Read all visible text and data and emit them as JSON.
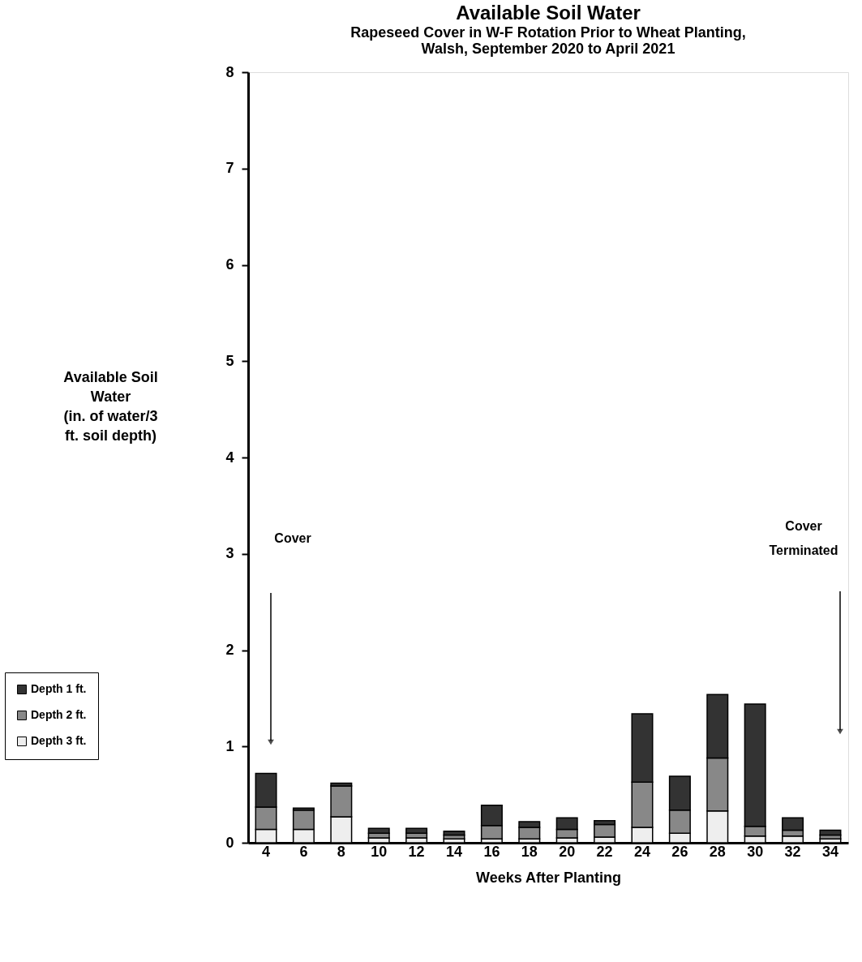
{
  "chart_data": {
    "type": "bar",
    "stacked": true,
    "title": "Available Soil Water",
    "subtitle": "Rapeseed Cover in W-F Rotation Prior to Wheat Planting,\nWalsh, September 2020 to April 2021",
    "xlabel": "Weeks After Planting",
    "ylabel": "Available Soil\nWater\n(in. of water/3\nft. soil depth)",
    "categories": [
      "4",
      "6",
      "8",
      "10",
      "12",
      "14",
      "16",
      "18",
      "20",
      "22",
      "24",
      "26",
      "28",
      "30",
      "32",
      "34"
    ],
    "series": [
      {
        "name": "Depth 3 ft.",
        "color": "#eeeeee",
        "values": [
          0.14,
          0.14,
          0.27,
          0.05,
          0.05,
          0.04,
          0.04,
          0.04,
          0.05,
          0.06,
          0.16,
          0.1,
          0.33,
          0.07,
          0.07,
          0.04
        ]
      },
      {
        "name": "Depth 2 ft.",
        "color": "#888888",
        "values": [
          0.23,
          0.2,
          0.32,
          0.05,
          0.05,
          0.04,
          0.14,
          0.12,
          0.09,
          0.13,
          0.47,
          0.24,
          0.55,
          0.1,
          0.06,
          0.04
        ]
      },
      {
        "name": "Depth 1 ft.",
        "color": "#333333",
        "values": [
          0.35,
          0.02,
          0.03,
          0.05,
          0.05,
          0.04,
          0.21,
          0.06,
          0.12,
          0.04,
          0.71,
          0.35,
          0.66,
          1.27,
          0.13,
          0.05
        ]
      }
    ],
    "ylim": [
      0,
      8
    ],
    "yticks": [
      0,
      1,
      2,
      3,
      4,
      5,
      6,
      7,
      8
    ],
    "grid": false,
    "legend": "bottom left",
    "annotations": [
      "Cover",
      "Cover\nTerminated"
    ]
  }
}
